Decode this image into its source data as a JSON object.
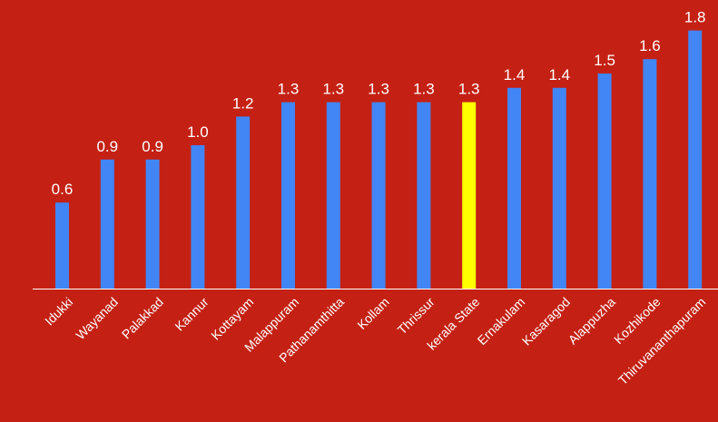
{
  "colors": {
    "background": "#c42114",
    "bar": "#4285f4",
    "highlight_bar": "#ffff00",
    "text": "#ffffff",
    "axis": "#ffffff"
  },
  "chart_data": {
    "type": "bar",
    "title": "",
    "xlabel": "",
    "ylabel": "",
    "ylim": [
      0,
      1.8
    ],
    "grid": false,
    "legend": "none",
    "categories": [
      "Idukki",
      "Wayanad",
      "Palakkad",
      "Kannur",
      "Kottayam",
      "Malappuram",
      "Pathanamthitta",
      "Kollam",
      "Thrissur",
      "kerala State",
      "Ernakulam",
      "Kasaragod",
      "Alappuzha",
      "Kozhikode",
      "Thiruvananthapuram"
    ],
    "values": [
      0.6,
      0.9,
      0.9,
      1.0,
      1.2,
      1.3,
      1.3,
      1.3,
      1.3,
      1.3,
      1.4,
      1.4,
      1.5,
      1.6,
      1.8
    ],
    "value_labels": [
      "0.6",
      "0.9",
      "0.9",
      "1.0",
      "1.2",
      "1.3",
      "1.3",
      "1.3",
      "1.3",
      "1.3",
      "1.4",
      "1.4",
      "1.5",
      "1.6",
      "1.8"
    ],
    "highlight_category": "kerala State"
  }
}
